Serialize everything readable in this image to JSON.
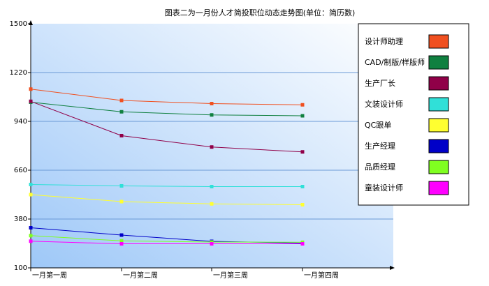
{
  "chart_data": {
    "type": "line",
    "title": "图表二为一月份人才简投职位动态走势图(单位：简历数)",
    "categories": [
      "一月第一周",
      "一月第二周",
      "一月第三周",
      "一月第四周"
    ],
    "ylim": [
      100,
      1500
    ],
    "yticks": [
      100,
      380,
      660,
      940,
      1220,
      1500
    ],
    "ytick_labels": [
      "100",
      "380",
      "660",
      "940",
      "1220",
      "1500"
    ],
    "grid": true,
    "legend_position": "top-right",
    "series": [
      {
        "name": "设计师助理",
        "color": "#f05020",
        "values": [
          1125,
          1060,
          1042,
          1035
        ]
      },
      {
        "name": "CAD/制版/样版师",
        "color": "#108040",
        "values": [
          1050,
          995,
          977,
          972
        ]
      },
      {
        "name": "生产厂长",
        "color": "#900048",
        "values": [
          1055,
          858,
          793,
          765
        ]
      },
      {
        "name": "文装设计师",
        "color": "#30e0d8",
        "values": [
          578,
          570,
          566,
          566
        ]
      },
      {
        "name": "QC跟单",
        "color": "#ffff30",
        "values": [
          520,
          480,
          467,
          462
        ]
      },
      {
        "name": "生产经理",
        "color": "#0000c8",
        "values": [
          330,
          288,
          252,
          242
        ]
      },
      {
        "name": "品质经理",
        "color": "#80ff20",
        "values": [
          285,
          255,
          248,
          247
        ]
      },
      {
        "name": "童装设计师",
        "color": "#ff00ff",
        "values": [
          253,
          238,
          238,
          238
        ]
      }
    ]
  }
}
